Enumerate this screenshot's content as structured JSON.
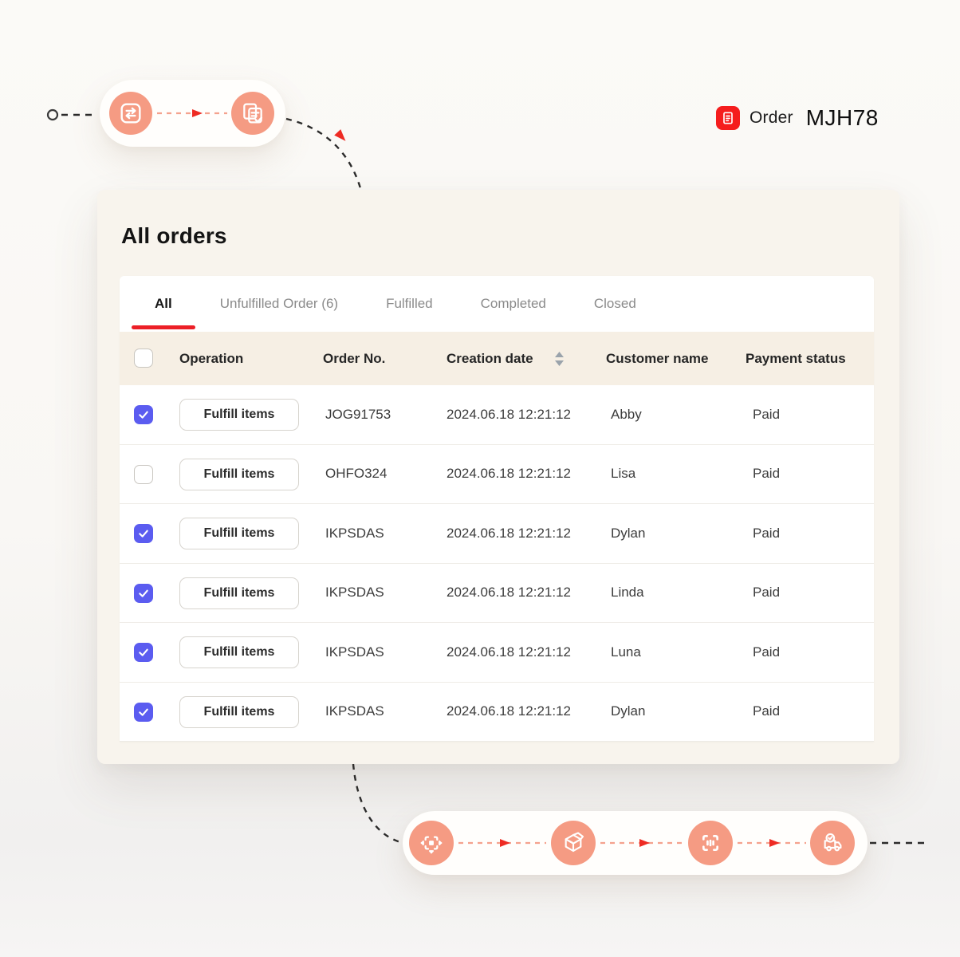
{
  "header_ref": {
    "badge_icon": "order-doc-icon",
    "label": "Order",
    "code": "MJH78"
  },
  "card": {
    "title": "All orders",
    "tabs": [
      {
        "label": "All",
        "active": true
      },
      {
        "label": "Unfulfilled Order (6)",
        "active": false
      },
      {
        "label": "Fulfilled",
        "active": false
      },
      {
        "label": "Completed",
        "active": false
      },
      {
        "label": "Closed",
        "active": false
      }
    ],
    "table": {
      "header": {
        "operation": "Operation",
        "order_no": "Order No.",
        "creation_date": "Creation date",
        "customer_name": "Customer name",
        "payment_status": "Payment status"
      },
      "action_label": "Fulfill items",
      "rows": [
        {
          "checked": true,
          "order_no": "JOG91753",
          "creation_date": "2024.06.18 12:21:12",
          "customer": "Abby",
          "payment": "Paid"
        },
        {
          "checked": false,
          "order_no": "OHFO324",
          "creation_date": "2024.06.18 12:21:12",
          "customer": "Lisa",
          "payment": "Paid"
        },
        {
          "checked": true,
          "order_no": "IKPSDAS",
          "creation_date": "2024.06.18 12:21:12",
          "customer": "Dylan",
          "payment": "Paid"
        },
        {
          "checked": true,
          "order_no": "IKPSDAS",
          "creation_date": "2024.06.18 12:21:12",
          "customer": "Linda",
          "payment": "Paid"
        },
        {
          "checked": true,
          "order_no": "IKPSDAS",
          "creation_date": "2024.06.18 12:21:12",
          "customer": "Luna",
          "payment": "Paid"
        },
        {
          "checked": true,
          "order_no": "IKPSDAS",
          "creation_date": "2024.06.18 12:21:12",
          "customer": "Dylan",
          "payment": "Paid"
        }
      ]
    }
  },
  "flows": {
    "top": {
      "steps": [
        "transfer-icon",
        "documents-check-icon"
      ]
    },
    "bottom": {
      "steps": [
        "dispatch-icon",
        "package-icon",
        "barcode-scan-icon",
        "delivery-truck-icon"
      ]
    }
  },
  "colors": {
    "accent_salmon": "#F59B83",
    "accent_red": "#EE2B23",
    "badge_red": "#F51D1D",
    "checkbox_indigo": "#5B5CF0",
    "tab_underline": "#EC1F26",
    "card_bg": "#F8F4ED",
    "header_row_bg": "#F6EFE4"
  }
}
